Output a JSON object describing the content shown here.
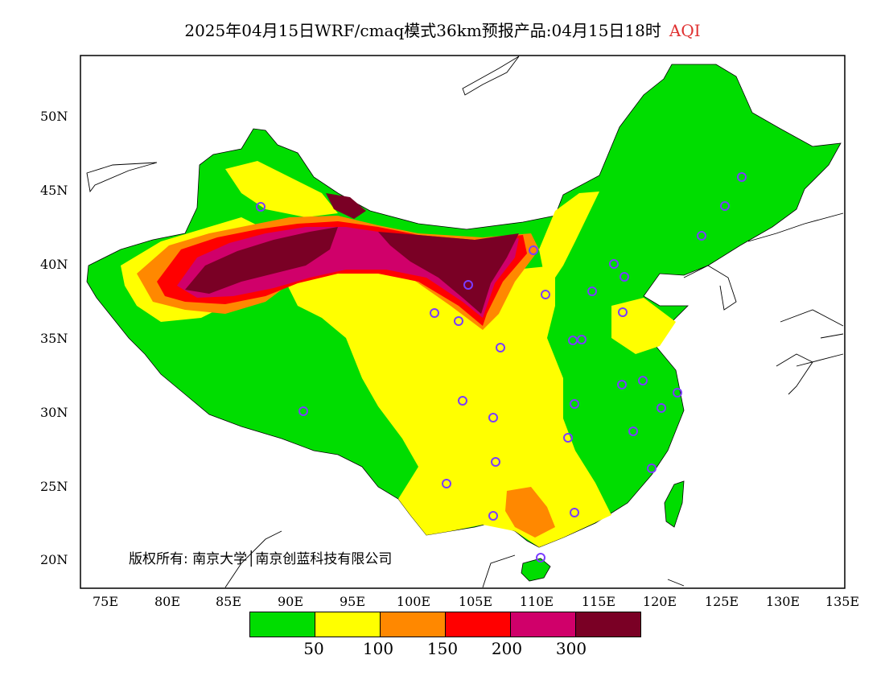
{
  "title": {
    "text": "2025年04月15日WRF/cmaq模式36km预报产品:04月15日18时",
    "metric": "AQI",
    "metric_color": "#e03030"
  },
  "map": {
    "region": "China",
    "lon_range": [
      73,
      135
    ],
    "lat_range": [
      18,
      54
    ],
    "lat_labels": [
      "50N",
      "45N",
      "40N",
      "35N",
      "30N",
      "25N",
      "20N"
    ],
    "lon_labels": [
      "75E",
      "80E",
      "85E",
      "90E",
      "95E",
      "100E",
      "105E",
      "110E",
      "115E",
      "120E",
      "125E",
      "130E",
      "135E"
    ],
    "copyright": "版权所有: 南京大学│南京创蓝科技有限公司"
  },
  "legend": {
    "colors": [
      "#00dd00",
      "#ffff00",
      "#ff8800",
      "#ff0000",
      "#d0006a",
      "#7a0025"
    ],
    "labels": [
      "50",
      "100",
      "150",
      "200",
      "300"
    ]
  }
}
